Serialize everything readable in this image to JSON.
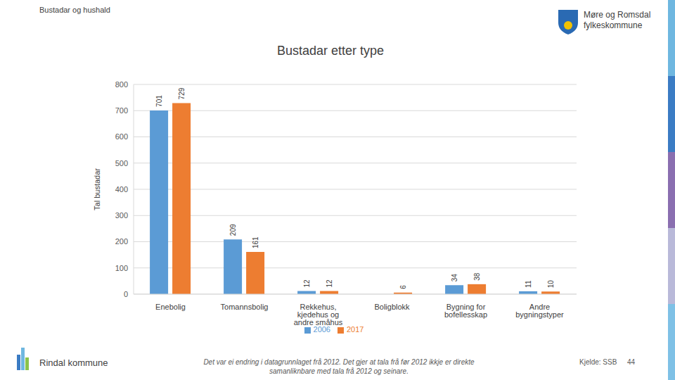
{
  "page": {
    "header": "Bustadar og hushald",
    "logo_line1": "Møre og Romsdal",
    "logo_line2": "fylkeskommune",
    "footer_left": "Rindal kommune",
    "footer_note": "Det var ei endring i datagrunnlaget frå 2012. Det gjer at tala frå før 2012 ikkje er direkte samanliknbare med tala frå 2012 og seinare.",
    "source": "Kjelde: SSB",
    "page_number": "44"
  },
  "chart_data": {
    "type": "bar",
    "title": "Bustadar etter type",
    "y_label": "Tal bustadar",
    "categories": [
      "Enebolig",
      "Tomannsbolig",
      "Rekkehus, kjedehus og andre småhus",
      "Boligblokk",
      "Bygning for bofellesskap",
      "Andre bygningstyper"
    ],
    "series": [
      {
        "name": "2006",
        "color": "#5b9bd5",
        "values": [
          701,
          209,
          12,
          0,
          34,
          11
        ]
      },
      {
        "name": "2017",
        "color": "#ed7d31",
        "values": [
          729,
          161,
          12,
          6,
          38,
          10
        ]
      }
    ],
    "ylim": [
      0,
      800
    ],
    "yticks": [
      0,
      100,
      200,
      300,
      400,
      500,
      600,
      700,
      800
    ],
    "grid": true,
    "data_labels": true,
    "legend": "bottom"
  }
}
